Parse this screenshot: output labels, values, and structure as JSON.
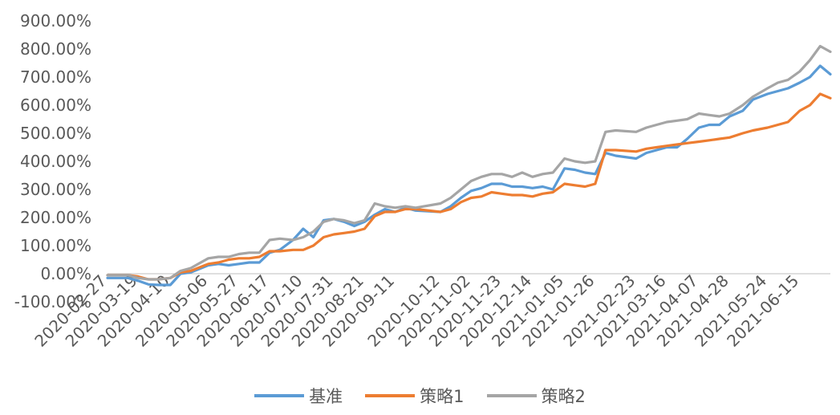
{
  "colors": {
    "基准": "#5B9BD5",
    "策略1": "#ED7D31",
    "策略2": "#A5A5A5"
  },
  "chart_data": {
    "type": "line",
    "title": "",
    "xlabel": "",
    "ylabel": "",
    "ylim": [
      -100,
      900
    ],
    "y_ticks": [
      -100,
      0,
      100,
      200,
      300,
      400,
      500,
      600,
      700,
      800,
      900
    ],
    "y_tick_labels": [
      "-100.00%",
      "0.00%",
      "100.00%",
      "200.00%",
      "300.00%",
      "400.00%",
      "500.00%",
      "600.00%",
      "700.00%",
      "800.00%",
      "900.00%"
    ],
    "x_tick_labels": [
      "2020-02-27",
      "2020-03-19",
      "2020-04-10",
      "2020-05-06",
      "2020-05-27",
      "2020-06-17",
      "2020-07-10",
      "2020-07-31",
      "2020-08-21",
      "2020-09-11",
      "2020-10-12",
      "2020-11-02",
      "2020-11-23",
      "2020-12-14",
      "2021-01-05",
      "2021-01-26",
      "2021-02-23",
      "2021-03-16",
      "2021-04-07",
      "2021-04-28",
      "2021-05-24",
      "2021-06-15"
    ],
    "x": [
      "2020-02-27",
      "2020-03-05",
      "2020-03-12",
      "2020-03-19",
      "2020-03-26",
      "2020-04-02",
      "2020-04-10",
      "2020-04-17",
      "2020-04-24",
      "2020-05-06",
      "2020-05-13",
      "2020-05-20",
      "2020-05-27",
      "2020-06-03",
      "2020-06-10",
      "2020-06-17",
      "2020-06-24",
      "2020-07-03",
      "2020-07-10",
      "2020-07-17",
      "2020-07-24",
      "2020-07-31",
      "2020-08-07",
      "2020-08-14",
      "2020-08-21",
      "2020-08-28",
      "2020-09-04",
      "2020-09-11",
      "2020-09-18",
      "2020-09-25",
      "2020-10-12",
      "2020-10-19",
      "2020-10-26",
      "2020-11-02",
      "2020-11-09",
      "2020-11-16",
      "2020-11-23",
      "2020-11-30",
      "2020-12-07",
      "2020-12-14",
      "2020-12-21",
      "2020-12-28",
      "2021-01-05",
      "2021-01-12",
      "2021-01-19",
      "2021-01-26",
      "2021-02-02",
      "2021-02-09",
      "2021-02-23",
      "2021-03-02",
      "2021-03-09",
      "2021-03-16",
      "2021-03-23",
      "2021-03-30",
      "2021-04-07",
      "2021-04-14",
      "2021-04-21",
      "2021-04-28",
      "2021-05-07",
      "2021-05-14",
      "2021-05-24",
      "2021-05-31",
      "2021-06-07",
      "2021-06-15",
      "2021-06-22",
      "2021-06-29",
      "2021-07-06"
    ],
    "series": [
      {
        "name": "基准",
        "values": [
          -15,
          -15,
          -15,
          -25,
          -38,
          -40,
          -40,
          0,
          5,
          30,
          35,
          30,
          35,
          40,
          40,
          75,
          85,
          120,
          160,
          130,
          190,
          195,
          185,
          170,
          185,
          210,
          230,
          220,
          235,
          225,
          220,
          240,
          270,
          295,
          305,
          320,
          320,
          310,
          310,
          305,
          310,
          300,
          375,
          370,
          360,
          355,
          430,
          420,
          410,
          430,
          440,
          450,
          450,
          480,
          520,
          530,
          530,
          560,
          580,
          620,
          640,
          650,
          660,
          680,
          700,
          740,
          710
        ]
      },
      {
        "name": "策略1",
        "values": [
          -5,
          -5,
          -5,
          -10,
          -20,
          -20,
          -15,
          5,
          10,
          35,
          40,
          50,
          55,
          55,
          60,
          80,
          80,
          85,
          85,
          100,
          130,
          140,
          145,
          150,
          160,
          205,
          220,
          220,
          230,
          230,
          220,
          230,
          255,
          270,
          275,
          290,
          285,
          280,
          280,
          275,
          285,
          290,
          320,
          315,
          310,
          320,
          440,
          440,
          435,
          445,
          450,
          455,
          460,
          465,
          470,
          475,
          480,
          485,
          500,
          510,
          520,
          530,
          540,
          580,
          600,
          640,
          625
        ]
      },
      {
        "name": "策略2",
        "values": [
          -5,
          -5,
          -5,
          -15,
          -20,
          -20,
          -15,
          10,
          20,
          55,
          60,
          60,
          70,
          75,
          75,
          120,
          125,
          120,
          130,
          150,
          185,
          195,
          190,
          180,
          190,
          250,
          240,
          235,
          240,
          235,
          250,
          270,
          300,
          330,
          345,
          355,
          355,
          345,
          360,
          345,
          355,
          360,
          410,
          400,
          395,
          400,
          505,
          510,
          505,
          520,
          530,
          540,
          545,
          550,
          570,
          565,
          560,
          570,
          600,
          630,
          660,
          680,
          690,
          720,
          760,
          810,
          790
        ]
      }
    ],
    "legend_position": "bottom",
    "grid": false
  }
}
